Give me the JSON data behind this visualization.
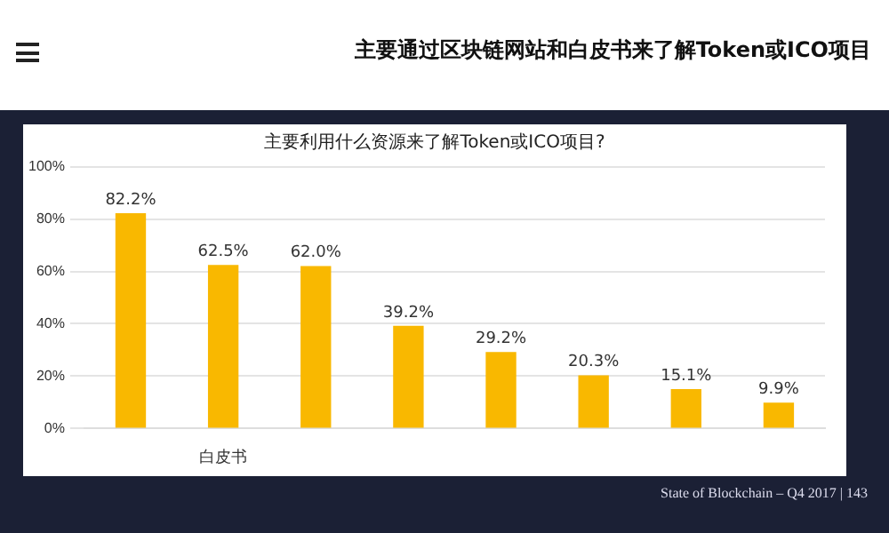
{
  "chart_data": {
    "type": "bar",
    "title": "主要通过区块链网站和白皮书来了解Token或ICO项目",
    "subtitle": "主要利用什么资源来了解Token或ICO项目?",
    "categories": [
      null,
      "白皮书",
      null,
      null,
      null,
      null,
      null,
      null
    ],
    "values": [
      82.2,
      62.5,
      62.0,
      39.2,
      29.2,
      20.3,
      15.1,
      9.9
    ],
    "value_labels": [
      "82.2%",
      "62.5%",
      "62.0%",
      "39.2%",
      "29.2%",
      "20.3%",
      "15.1%",
      "9.9%"
    ],
    "color": "#f9b800",
    "ylim": [
      0,
      100
    ],
    "yticks": [
      {
        "value": 0,
        "label": "0%"
      },
      {
        "value": 20,
        "label": "20%"
      },
      {
        "value": 40,
        "label": "40%"
      },
      {
        "value": 60,
        "label": "60%"
      },
      {
        "value": 80,
        "label": "80%"
      },
      {
        "value": 100,
        "label": "100%"
      }
    ],
    "grid": "y",
    "legend": false,
    "annotations": [
      "State of Blockchain – Q4 2017  |  143"
    ]
  }
}
